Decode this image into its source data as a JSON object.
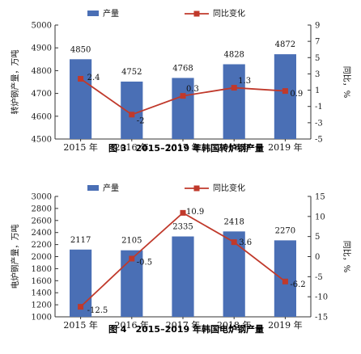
{
  "chart_data": [
    {
      "type": "bar+line",
      "title": "图 3　2015–2019 年韩国转炉钢产量",
      "categories": [
        "2015 年",
        "2016 年",
        "2017 年",
        "2018 年",
        "2019 年"
      ],
      "series": [
        {
          "name": "产量",
          "type": "bar",
          "axis": "left",
          "values": [
            4850,
            4752,
            4768,
            4828,
            4872
          ],
          "color": "#4a6fb5"
        },
        {
          "name": "同比变化",
          "type": "line",
          "axis": "right",
          "values": [
            2.4,
            -2,
            0.3,
            1.3,
            0.9
          ],
          "color": "#c0392b"
        }
      ],
      "ylabel": "转炉钢产量，万吨",
      "y2label": "同比，%",
      "ylim": [
        4500,
        5000
      ],
      "yticks": [
        4500,
        4600,
        4700,
        4800,
        4900,
        5000
      ],
      "y2lim": [
        -5,
        9
      ],
      "y2ticks": [
        -5,
        -3,
        -1,
        1,
        3,
        5,
        7,
        9
      ],
      "legend": "top"
    },
    {
      "type": "bar+line",
      "title": "图 4　2015–2019 年韩国电炉钢产量",
      "categories": [
        "2015 年",
        "2016 年",
        "2017 年",
        "2018 年",
        "2019 年"
      ],
      "series": [
        {
          "name": "产量",
          "type": "bar",
          "axis": "left",
          "values": [
            2117,
            2105,
            2335,
            2418,
            2270
          ],
          "color": "#4a6fb5"
        },
        {
          "name": "同比变化",
          "type": "line",
          "axis": "right",
          "values": [
            -12.5,
            -0.5,
            10.9,
            3.6,
            -6.2
          ],
          "color": "#c0392b"
        }
      ],
      "ylabel": "电炉钢产量，万吨",
      "y2label": "同比，%",
      "ylim": [
        1000,
        3000
      ],
      "yticks": [
        1000,
        1200,
        1400,
        1600,
        1800,
        2000,
        2200,
        2400,
        2600,
        2800,
        3000
      ],
      "y2lim": [
        -15,
        15
      ],
      "y2ticks": [
        -15,
        -10,
        -5,
        0,
        5,
        10,
        15
      ],
      "legend": "top"
    }
  ]
}
